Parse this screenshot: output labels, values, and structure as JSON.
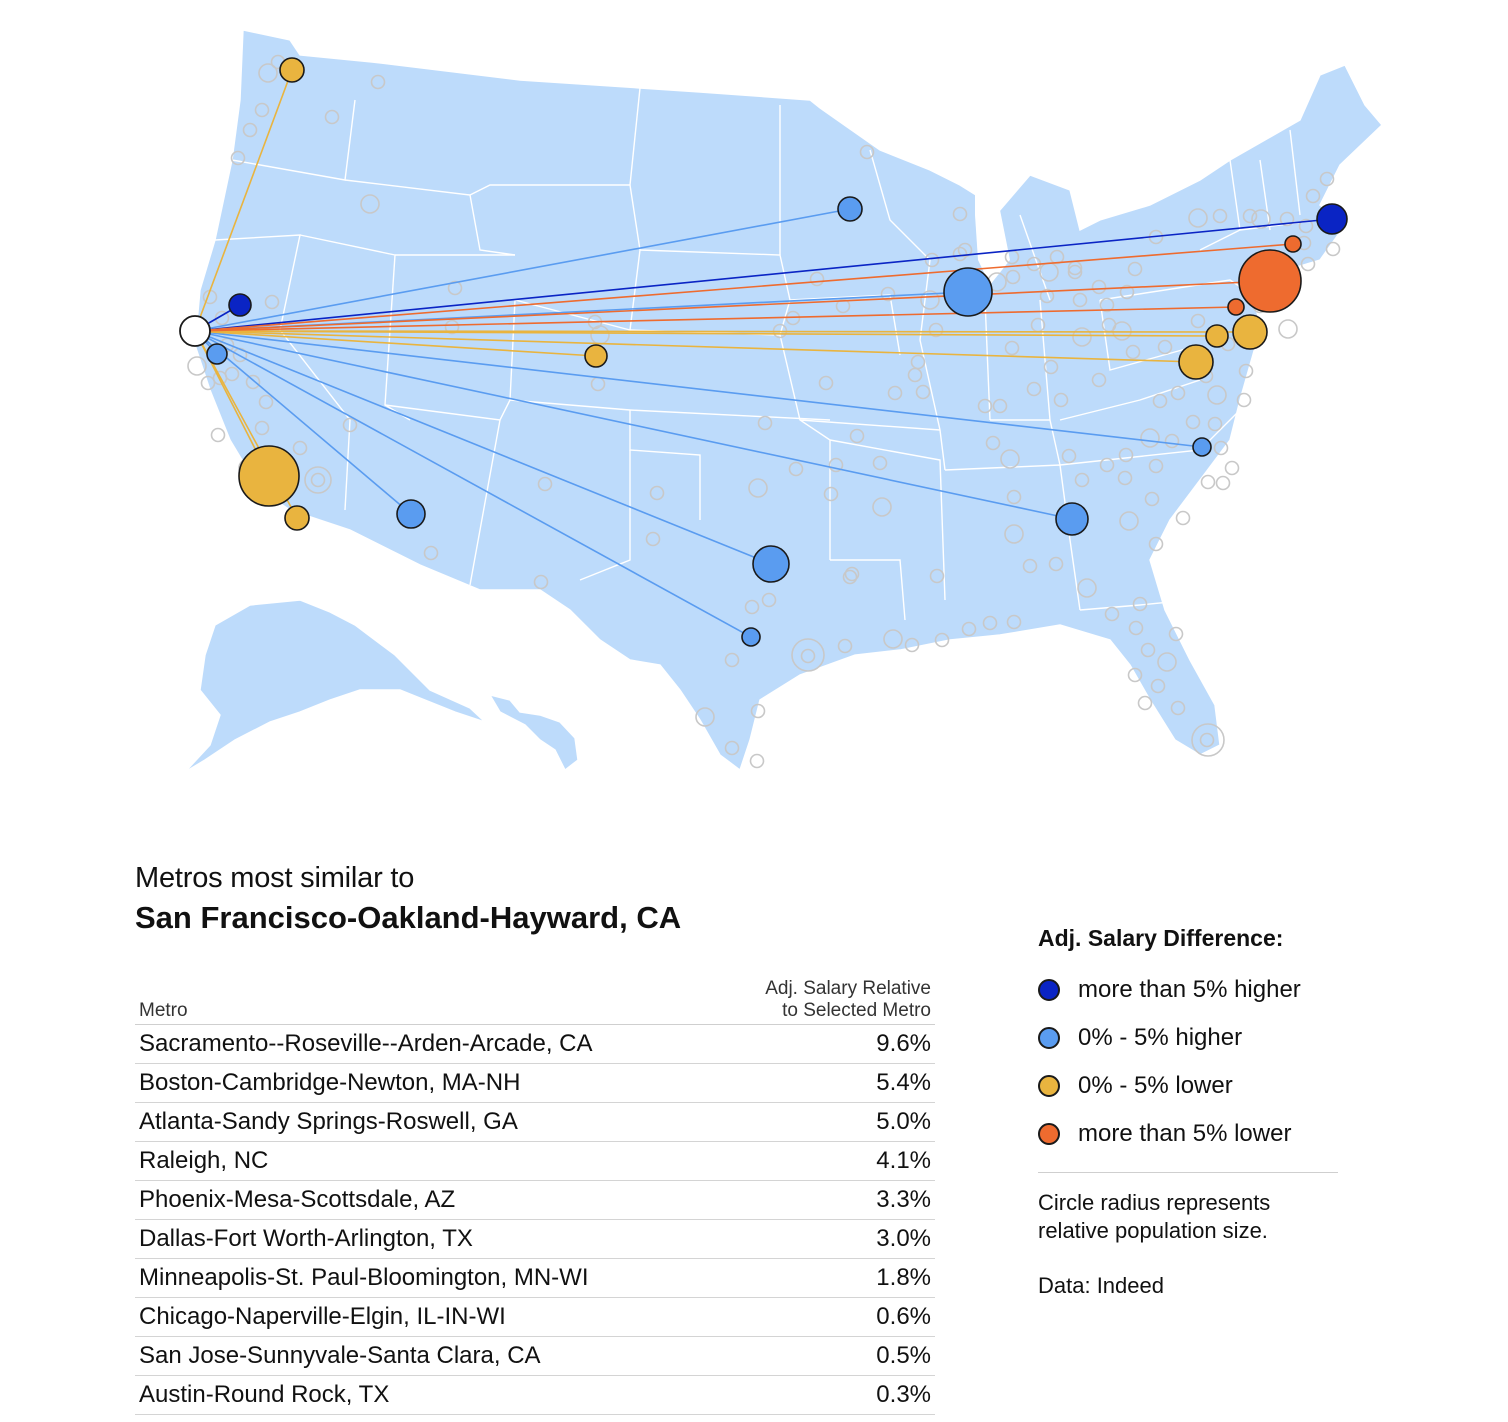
{
  "colors": {
    "more_5_higher": "#0a24c4",
    "0_5_higher": "#5a9cf0",
    "0_5_lower": "#e9b43f",
    "more_5_lower": "#ee6b2f",
    "selected": "#ffffff",
    "land": "#bddbfb"
  },
  "map": {
    "selected_metro": "San Francisco-Oakland-Hayward, CA"
  },
  "table": {
    "title_line1": "Metros most similar to",
    "title_line2": "San Francisco-Oakland-Hayward, CA",
    "col_metro": "Metro",
    "col_value": "Adj. Salary Relative to Selected Metro",
    "rows": [
      {
        "metro": "Sacramento--Roseville--Arden-Arcade, CA",
        "value": "9.6%"
      },
      {
        "metro": "Boston-Cambridge-Newton, MA-NH",
        "value": "5.4%"
      },
      {
        "metro": "Atlanta-Sandy Springs-Roswell, GA",
        "value": "5.0%"
      },
      {
        "metro": "Raleigh, NC",
        "value": "4.1%"
      },
      {
        "metro": "Phoenix-Mesa-Scottsdale, AZ",
        "value": "3.3%"
      },
      {
        "metro": "Dallas-Fort Worth-Arlington, TX",
        "value": "3.0%"
      },
      {
        "metro": "Minneapolis-St. Paul-Bloomington, MN-WI",
        "value": "1.8%"
      },
      {
        "metro": "Chicago-Naperville-Elgin, IL-IN-WI",
        "value": "0.6%"
      },
      {
        "metro": "San Jose-Sunnyvale-Santa Clara, CA",
        "value": "0.5%"
      },
      {
        "metro": "Austin-Round Rock, TX",
        "value": "0.3%"
      }
    ]
  },
  "legend": {
    "title": "Adj. Salary Difference:",
    "items": [
      {
        "label": "more than 5% higher",
        "color": "#0a24c4"
      },
      {
        "label": "0% - 5% higher",
        "color": "#5a9cf0"
      },
      {
        "label": "0% - 5% lower",
        "color": "#e9b43f"
      },
      {
        "label": "more than 5% lower",
        "color": "#ee6b2f"
      }
    ],
    "note": "Circle radius represents relative population size.",
    "source": "Data: Indeed"
  }
}
